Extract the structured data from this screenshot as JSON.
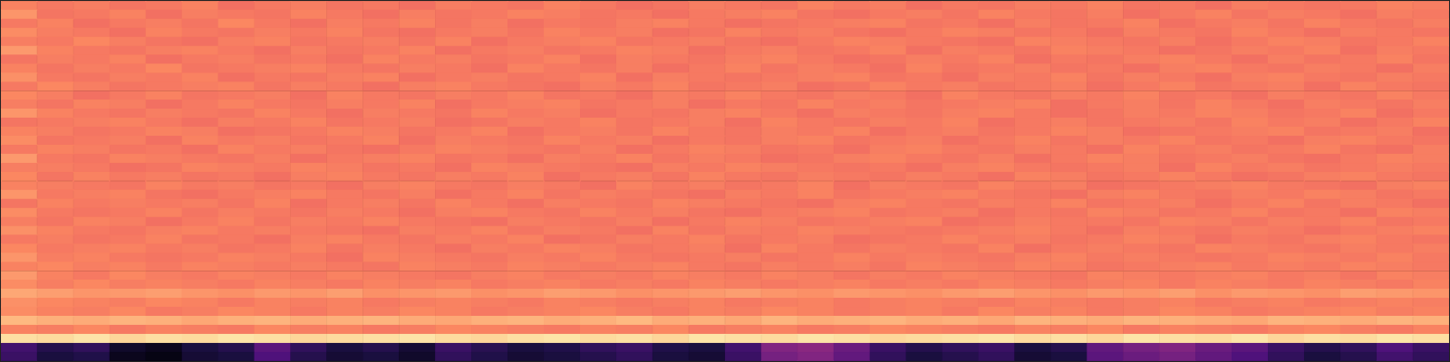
{
  "chart_data": {
    "type": "heatmap",
    "tick_labels": false,
    "grid": false,
    "color_range": [
      0,
      100
    ],
    "cells": [
      [
        74,
        72,
        73,
        71,
        72,
        74,
        70,
        72,
        73,
        71,
        72,
        70,
        73,
        72,
        71,
        74,
        72,
        70,
        71,
        73,
        72,
        71,
        74,
        72,
        73,
        70,
        72,
        71,
        73,
        72,
        74,
        71,
        72,
        70,
        73,
        72,
        71,
        72,
        74,
        73
      ],
      [
        78,
        71,
        72,
        74,
        70,
        73,
        72,
        71,
        74,
        72,
        70,
        73,
        71,
        72,
        74,
        73,
        71,
        72,
        70,
        72,
        73,
        74,
        71,
        70,
        72,
        73,
        71,
        74,
        72,
        71,
        73,
        70,
        72,
        74,
        71,
        73,
        72,
        70,
        73,
        72
      ],
      [
        72,
        74,
        70,
        72,
        73,
        71,
        75,
        72,
        70,
        73,
        72,
        74,
        71,
        73,
        70,
        72,
        71,
        73,
        74,
        72,
        70,
        71,
        72,
        73,
        74,
        71,
        72,
        70,
        73,
        71,
        72,
        74,
        70,
        72,
        73,
        71,
        74,
        72,
        71,
        73
      ],
      [
        76,
        73,
        72,
        70,
        74,
        72,
        71,
        73,
        72,
        74,
        71,
        70,
        72,
        73,
        71,
        74,
        72,
        73,
        70,
        71,
        74,
        72,
        73,
        71,
        70,
        72,
        74,
        73,
        71,
        72,
        70,
        73,
        72,
        71,
        74,
        72,
        70,
        73,
        72,
        71
      ],
      [
        73,
        72,
        75,
        73,
        71,
        70,
        73,
        74,
        71,
        72,
        73,
        71,
        74,
        70,
        72,
        73,
        74,
        71,
        72,
        73,
        71,
        70,
        72,
        74,
        73,
        72,
        71,
        70,
        74,
        73,
        72,
        71,
        73,
        70,
        72,
        74,
        73,
        71,
        72,
        74
      ],
      [
        79,
        74,
        72,
        71,
        73,
        74,
        72,
        70,
        73,
        71,
        72,
        74,
        70,
        72,
        73,
        71,
        72,
        74,
        73,
        70,
        72,
        73,
        71,
        72,
        74,
        70,
        73,
        72,
        71,
        74,
        73,
        72,
        70,
        71,
        73,
        72,
        74,
        70,
        73,
        72
      ],
      [
        71,
        73,
        72,
        74,
        70,
        72,
        73,
        71,
        72,
        70,
        74,
        72,
        73,
        71,
        72,
        74,
        70,
        73,
        72,
        71,
        73,
        74,
        72,
        70,
        71,
        73,
        72,
        74,
        70,
        72,
        71,
        73,
        74,
        72,
        70,
        73,
        71,
        72,
        74,
        71
      ],
      [
        74,
        71,
        73,
        72,
        75,
        71,
        72,
        73,
        74,
        72,
        71,
        73,
        72,
        70,
        74,
        72,
        71,
        73,
        70,
        72,
        74,
        71,
        73,
        72,
        70,
        74,
        71,
        72,
        73,
        71,
        72,
        70,
        73,
        74,
        72,
        71,
        73,
        72,
        70,
        73
      ],
      [
        77,
        72,
        71,
        73,
        72,
        74,
        70,
        72,
        71,
        73,
        74,
        70,
        72,
        73,
        71,
        72,
        74,
        70,
        73,
        72,
        71,
        72,
        73,
        74,
        71,
        72,
        70,
        73,
        72,
        74,
        71,
        73,
        72,
        70,
        73,
        74,
        72,
        71,
        73,
        72
      ],
      [
        72,
        75,
        73,
        71,
        72,
        73,
        74,
        71,
        73,
        72,
        70,
        73,
        74,
        72,
        71,
        70,
        73,
        72,
        74,
        71,
        72,
        73,
        70,
        71,
        74,
        72,
        73,
        71,
        72,
        73,
        70,
        72,
        74,
        71,
        72,
        73,
        70,
        74,
        72,
        71
      ],
      [
        75,
        73,
        70,
        72,
        74,
        71,
        72,
        73,
        70,
        74,
        72,
        71,
        73,
        72,
        74,
        71,
        72,
        70,
        73,
        72,
        74,
        72,
        71,
        73,
        72,
        70,
        74,
        72,
        71,
        73,
        72,
        74,
        71,
        72,
        70,
        73,
        72,
        71,
        74,
        72
      ],
      [
        73,
        71,
        74,
        73,
        70,
        72,
        74,
        72,
        71,
        73,
        72,
        74,
        70,
        72,
        73,
        74,
        71,
        72,
        73,
        70,
        72,
        71,
        74,
        72,
        73,
        71,
        72,
        73,
        74,
        70,
        72,
        73,
        71,
        74,
        72,
        70,
        73,
        72,
        71,
        73
      ],
      [
        78,
        74,
        72,
        71,
        73,
        72,
        71,
        74,
        72,
        70,
        73,
        72,
        71,
        74,
        72,
        73,
        70,
        72,
        71,
        73,
        74,
        72,
        70,
        73,
        72,
        71,
        73,
        74,
        72,
        70,
        71,
        73,
        72,
        74,
        73,
        71,
        72,
        74,
        70,
        72
      ],
      [
        71,
        72,
        73,
        74,
        72,
        70,
        73,
        72,
        74,
        71,
        72,
        73,
        70,
        71,
        73,
        72,
        74,
        71,
        72,
        73,
        70,
        74,
        72,
        71,
        73,
        72,
        74,
        70,
        72,
        73,
        71,
        72,
        73,
        71,
        74,
        72,
        73,
        70,
        72,
        74
      ],
      [
        74,
        73,
        71,
        72,
        74,
        73,
        70,
        71,
        72,
        74,
        73,
        71,
        72,
        74,
        70,
        72,
        73,
        71,
        74,
        72,
        71,
        73,
        72,
        74,
        70,
        72,
        73,
        71,
        72,
        74,
        73,
        70,
        71,
        72,
        73,
        74,
        71,
        72,
        73,
        70
      ],
      [
        76,
        71,
        72,
        73,
        70,
        74,
        72,
        73,
        71,
        72,
        74,
        70,
        73,
        72,
        71,
        74,
        72,
        73,
        70,
        72,
        71,
        73,
        74,
        71,
        72,
        73,
        70,
        72,
        74,
        71,
        73,
        72,
        74,
        71,
        72,
        70,
        73,
        74,
        72,
        71
      ],
      [
        72,
        74,
        73,
        71,
        72,
        70,
        74,
        72,
        73,
        71,
        70,
        72,
        74,
        73,
        72,
        71,
        73,
        70,
        72,
        74,
        73,
        71,
        72,
        70,
        73,
        74,
        72,
        71,
        73,
        72,
        70,
        74,
        72,
        73,
        71,
        72,
        74,
        71,
        70,
        73
      ],
      [
        79,
        72,
        71,
        74,
        73,
        72,
        71,
        73,
        70,
        72,
        73,
        74,
        71,
        72,
        70,
        73,
        72,
        74,
        71,
        73,
        72,
        70,
        71,
        73,
        74,
        72,
        71,
        73,
        70,
        72,
        74,
        73,
        71,
        72,
        73,
        71,
        70,
        72,
        74,
        73
      ],
      [
        73,
        73,
        72,
        70,
        71,
        74,
        73,
        72,
        74,
        73,
        71,
        72,
        70,
        74,
        73,
        72,
        71,
        70,
        73,
        72,
        74,
        73,
        72,
        71,
        72,
        70,
        73,
        74,
        72,
        71,
        72,
        73,
        70,
        74,
        72,
        73,
        71,
        72,
        73,
        72
      ],
      [
        75,
        71,
        74,
        72,
        73,
        71,
        72,
        70,
        73,
        74,
        72,
        71,
        73,
        72,
        74,
        70,
        72,
        73,
        71,
        74,
        72,
        71,
        73,
        72,
        71,
        73,
        72,
        70,
        74,
        73,
        71,
        72,
        74,
        72,
        70,
        71,
        73,
        74,
        72,
        71
      ],
      [
        74,
        73,
        72,
        71,
        74,
        72,
        73,
        71,
        72,
        70,
        73,
        74,
        72,
        71,
        73,
        72,
        70,
        74,
        72,
        73,
        71,
        72,
        74,
        70,
        73,
        72,
        71,
        74,
        72,
        73,
        70,
        71,
        72,
        73,
        74,
        72,
        71,
        70,
        73,
        74
      ],
      [
        78,
        72,
        73,
        74,
        71,
        70,
        72,
        73,
        74,
        72,
        71,
        73,
        70,
        72,
        74,
        71,
        73,
        72,
        71,
        70,
        73,
        72,
        74,
        71,
        72,
        73,
        74,
        72,
        71,
        70,
        73,
        74,
        72,
        71,
        73,
        72,
        74,
        73,
        71,
        72
      ],
      [
        71,
        74,
        72,
        73,
        72,
        73,
        71,
        74,
        70,
        72,
        73,
        71,
        74,
        72,
        70,
        73,
        72,
        71,
        74,
        73,
        72,
        71,
        70,
        73,
        74,
        72,
        71,
        73,
        72,
        74,
        71,
        72,
        73,
        70,
        72,
        74,
        71,
        73,
        72,
        70
      ],
      [
        76,
        72,
        71,
        72,
        74,
        71,
        73,
        72,
        71,
        73,
        72,
        70,
        73,
        74,
        72,
        71,
        74,
        72,
        73,
        71,
        70,
        72,
        73,
        74,
        71,
        72,
        73,
        70,
        72,
        71,
        74,
        73,
        71,
        72,
        74,
        71,
        72,
        70,
        74,
        73
      ],
      [
        73,
        71,
        74,
        73,
        70,
        72,
        74,
        71,
        73,
        72,
        74,
        72,
        71,
        70,
        73,
        72,
        71,
        73,
        70,
        72,
        74,
        73,
        71,
        72,
        73,
        74,
        70,
        71,
        73,
        72,
        72,
        71,
        74,
        73,
        71,
        73,
        72,
        74,
        71,
        72
      ],
      [
        77,
        74,
        72,
        71,
        73,
        74,
        72,
        73,
        72,
        71,
        70,
        73,
        72,
        74,
        71,
        73,
        72,
        70,
        74,
        71,
        73,
        72,
        74,
        73,
        72,
        71,
        72,
        73,
        74,
        72,
        70,
        73,
        72,
        71,
        73,
        72,
        70,
        72,
        73,
        74
      ],
      [
        72,
        73,
        71,
        72,
        74,
        71,
        72,
        70,
        73,
        74,
        72,
        71,
        73,
        72,
        74,
        70,
        71,
        73,
        72,
        74,
        71,
        72,
        73,
        70,
        71,
        72,
        74,
        72,
        73,
        71,
        72,
        74,
        73,
        70,
        72,
        71,
        73,
        74,
        72,
        71
      ],
      [
        75,
        72,
        73,
        74,
        72,
        73,
        71,
        72,
        74,
        71,
        73,
        72,
        70,
        73,
        72,
        74,
        73,
        71,
        72,
        73,
        70,
        74,
        72,
        71,
        73,
        72,
        71,
        74,
        70,
        72,
        73,
        72,
        71,
        74,
        73,
        72,
        71,
        73,
        72,
        73
      ],
      [
        78,
        73,
        74,
        72,
        71,
        72,
        74,
        73,
        72,
        70,
        74,
        73,
        72,
        71,
        73,
        72,
        74,
        72,
        71,
        72,
        73,
        71,
        72,
        74,
        72,
        73,
        72,
        71,
        73,
        74,
        72,
        73,
        72,
        71,
        72,
        74,
        73,
        72,
        74,
        72
      ],
      [
        74,
        75,
        73,
        74,
        72,
        74,
        73,
        72,
        73,
        72,
        71,
        74,
        73,
        72,
        74,
        73,
        72,
        73,
        74,
        72,
        71,
        73,
        72,
        73,
        71,
        74,
        73,
        72,
        74,
        73,
        71,
        72,
        73,
        74,
        72,
        73,
        72,
        74,
        73,
        72
      ],
      [
        79,
        74,
        72,
        75,
        73,
        72,
        74,
        73,
        72,
        74,
        73,
        72,
        71,
        73,
        74,
        72,
        73,
        72,
        74,
        73,
        72,
        74,
        73,
        71,
        73,
        72,
        74,
        73,
        72,
        71,
        74,
        73,
        72,
        73,
        74,
        72,
        73,
        71,
        74,
        73
      ],
      [
        76,
        73,
        75,
        73,
        74,
        73,
        72,
        74,
        73,
        72,
        74,
        73,
        74,
        72,
        73,
        74,
        72,
        73,
        72,
        74,
        73,
        72,
        73,
        74,
        72,
        73,
        72,
        74,
        73,
        72,
        73,
        74,
        72,
        74,
        73,
        72,
        74,
        73,
        72,
        74
      ],
      [
        82,
        80,
        78,
        79,
        80,
        78,
        77,
        79,
        78,
        80,
        77,
        78,
        79,
        77,
        78,
        80,
        79,
        77,
        78,
        79,
        80,
        78,
        77,
        79,
        78,
        77,
        79,
        80,
        78,
        77,
        79,
        78,
        80,
        77,
        79,
        78,
        77,
        80,
        79,
        78
      ],
      [
        77,
        75,
        74,
        73,
        75,
        74,
        72,
        74,
        73,
        74,
        72,
        73,
        74,
        73,
        72,
        74,
        73,
        72,
        73,
        74,
        72,
        73,
        74,
        72,
        73,
        74,
        73,
        72,
        74,
        73,
        72,
        73,
        74,
        72,
        73,
        74,
        72,
        73,
        74,
        73
      ],
      [
        76,
        74,
        73,
        75,
        72,
        73,
        75,
        74,
        72,
        74,
        73,
        75,
        74,
        72,
        73,
        74,
        75,
        73,
        72,
        74,
        73,
        75,
        74,
        72,
        73,
        74,
        72,
        75,
        73,
        74,
        72,
        73,
        75,
        74,
        72,
        73,
        74,
        75,
        73,
        74
      ],
      [
        86,
        84,
        83,
        85,
        84,
        82,
        84,
        85,
        83,
        84,
        85,
        83,
        82,
        84,
        85,
        83,
        84,
        86,
        83,
        84,
        82,
        85,
        83,
        84,
        85,
        83,
        84,
        82,
        85,
        84,
        83,
        85,
        84,
        83,
        82,
        85,
        84,
        83,
        85,
        84
      ],
      [
        74,
        73,
        75,
        72,
        74,
        73,
        72,
        75,
        73,
        74,
        72,
        73,
        75,
        74,
        73,
        72,
        74,
        73,
        75,
        72,
        73,
        74,
        72,
        73,
        75,
        74,
        73,
        72,
        74,
        73,
        75,
        72,
        74,
        73,
        72,
        74,
        75,
        73,
        72,
        74
      ],
      [
        94,
        93,
        95,
        92,
        94,
        93,
        95,
        94,
        92,
        93,
        94,
        95,
        93,
        92,
        94,
        95,
        93,
        94,
        92,
        95,
        94,
        93,
        95,
        94,
        92,
        93,
        94,
        95,
        93,
        94,
        92,
        95,
        94,
        93,
        95,
        92,
        94,
        93,
        95,
        94
      ],
      [
        22,
        15,
        18,
        8,
        5,
        12,
        15,
        28,
        18,
        12,
        15,
        10,
        20,
        16,
        12,
        14,
        18,
        20,
        14,
        12,
        22,
        38,
        40,
        32,
        20,
        15,
        18,
        20,
        12,
        15,
        30,
        35,
        38,
        32,
        28,
        20,
        15,
        18,
        25,
        20
      ],
      [
        20,
        12,
        14,
        5,
        3,
        10,
        12,
        25,
        15,
        10,
        12,
        8,
        18,
        14,
        10,
        12,
        15,
        18,
        12,
        10,
        20,
        35,
        38,
        30,
        18,
        12,
        15,
        18,
        10,
        12,
        28,
        32,
        35,
        30,
        25,
        18,
        12,
        15,
        22,
        18
      ]
    ]
  }
}
